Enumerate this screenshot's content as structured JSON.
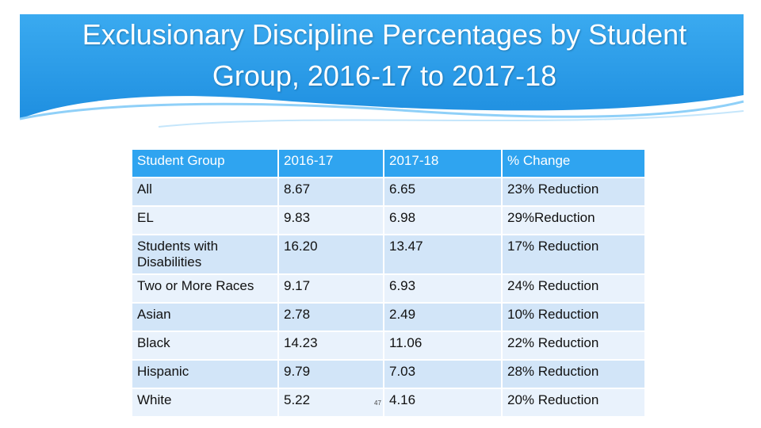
{
  "title": "Exclusionary Discipline Percentages by Student Group, 2016-17 to 2017-18",
  "table": {
    "header": [
      "Student Group",
      "2016-17",
      "2017-18",
      "% Change"
    ],
    "rows": [
      [
        "All",
        "8.67",
        "6.65",
        "23% Reduction"
      ],
      [
        "EL",
        "9.83",
        "6.98",
        "29%Reduction"
      ],
      [
        "Students with Disabilities",
        "16.20",
        "13.47",
        "17% Reduction"
      ],
      [
        "Two or More Races",
        "9.17",
        "6.93",
        "24% Reduction"
      ],
      [
        "Asian",
        "2.78",
        "2.49",
        "10% Reduction"
      ],
      [
        "Black",
        "14.23",
        "11.06",
        "22% Reduction"
      ],
      [
        "Hispanic",
        "9.79",
        "7.03",
        "28% Reduction"
      ],
      [
        "White",
        "5.22",
        "4.16",
        "20% Reduction"
      ]
    ]
  },
  "page_number": "47"
}
